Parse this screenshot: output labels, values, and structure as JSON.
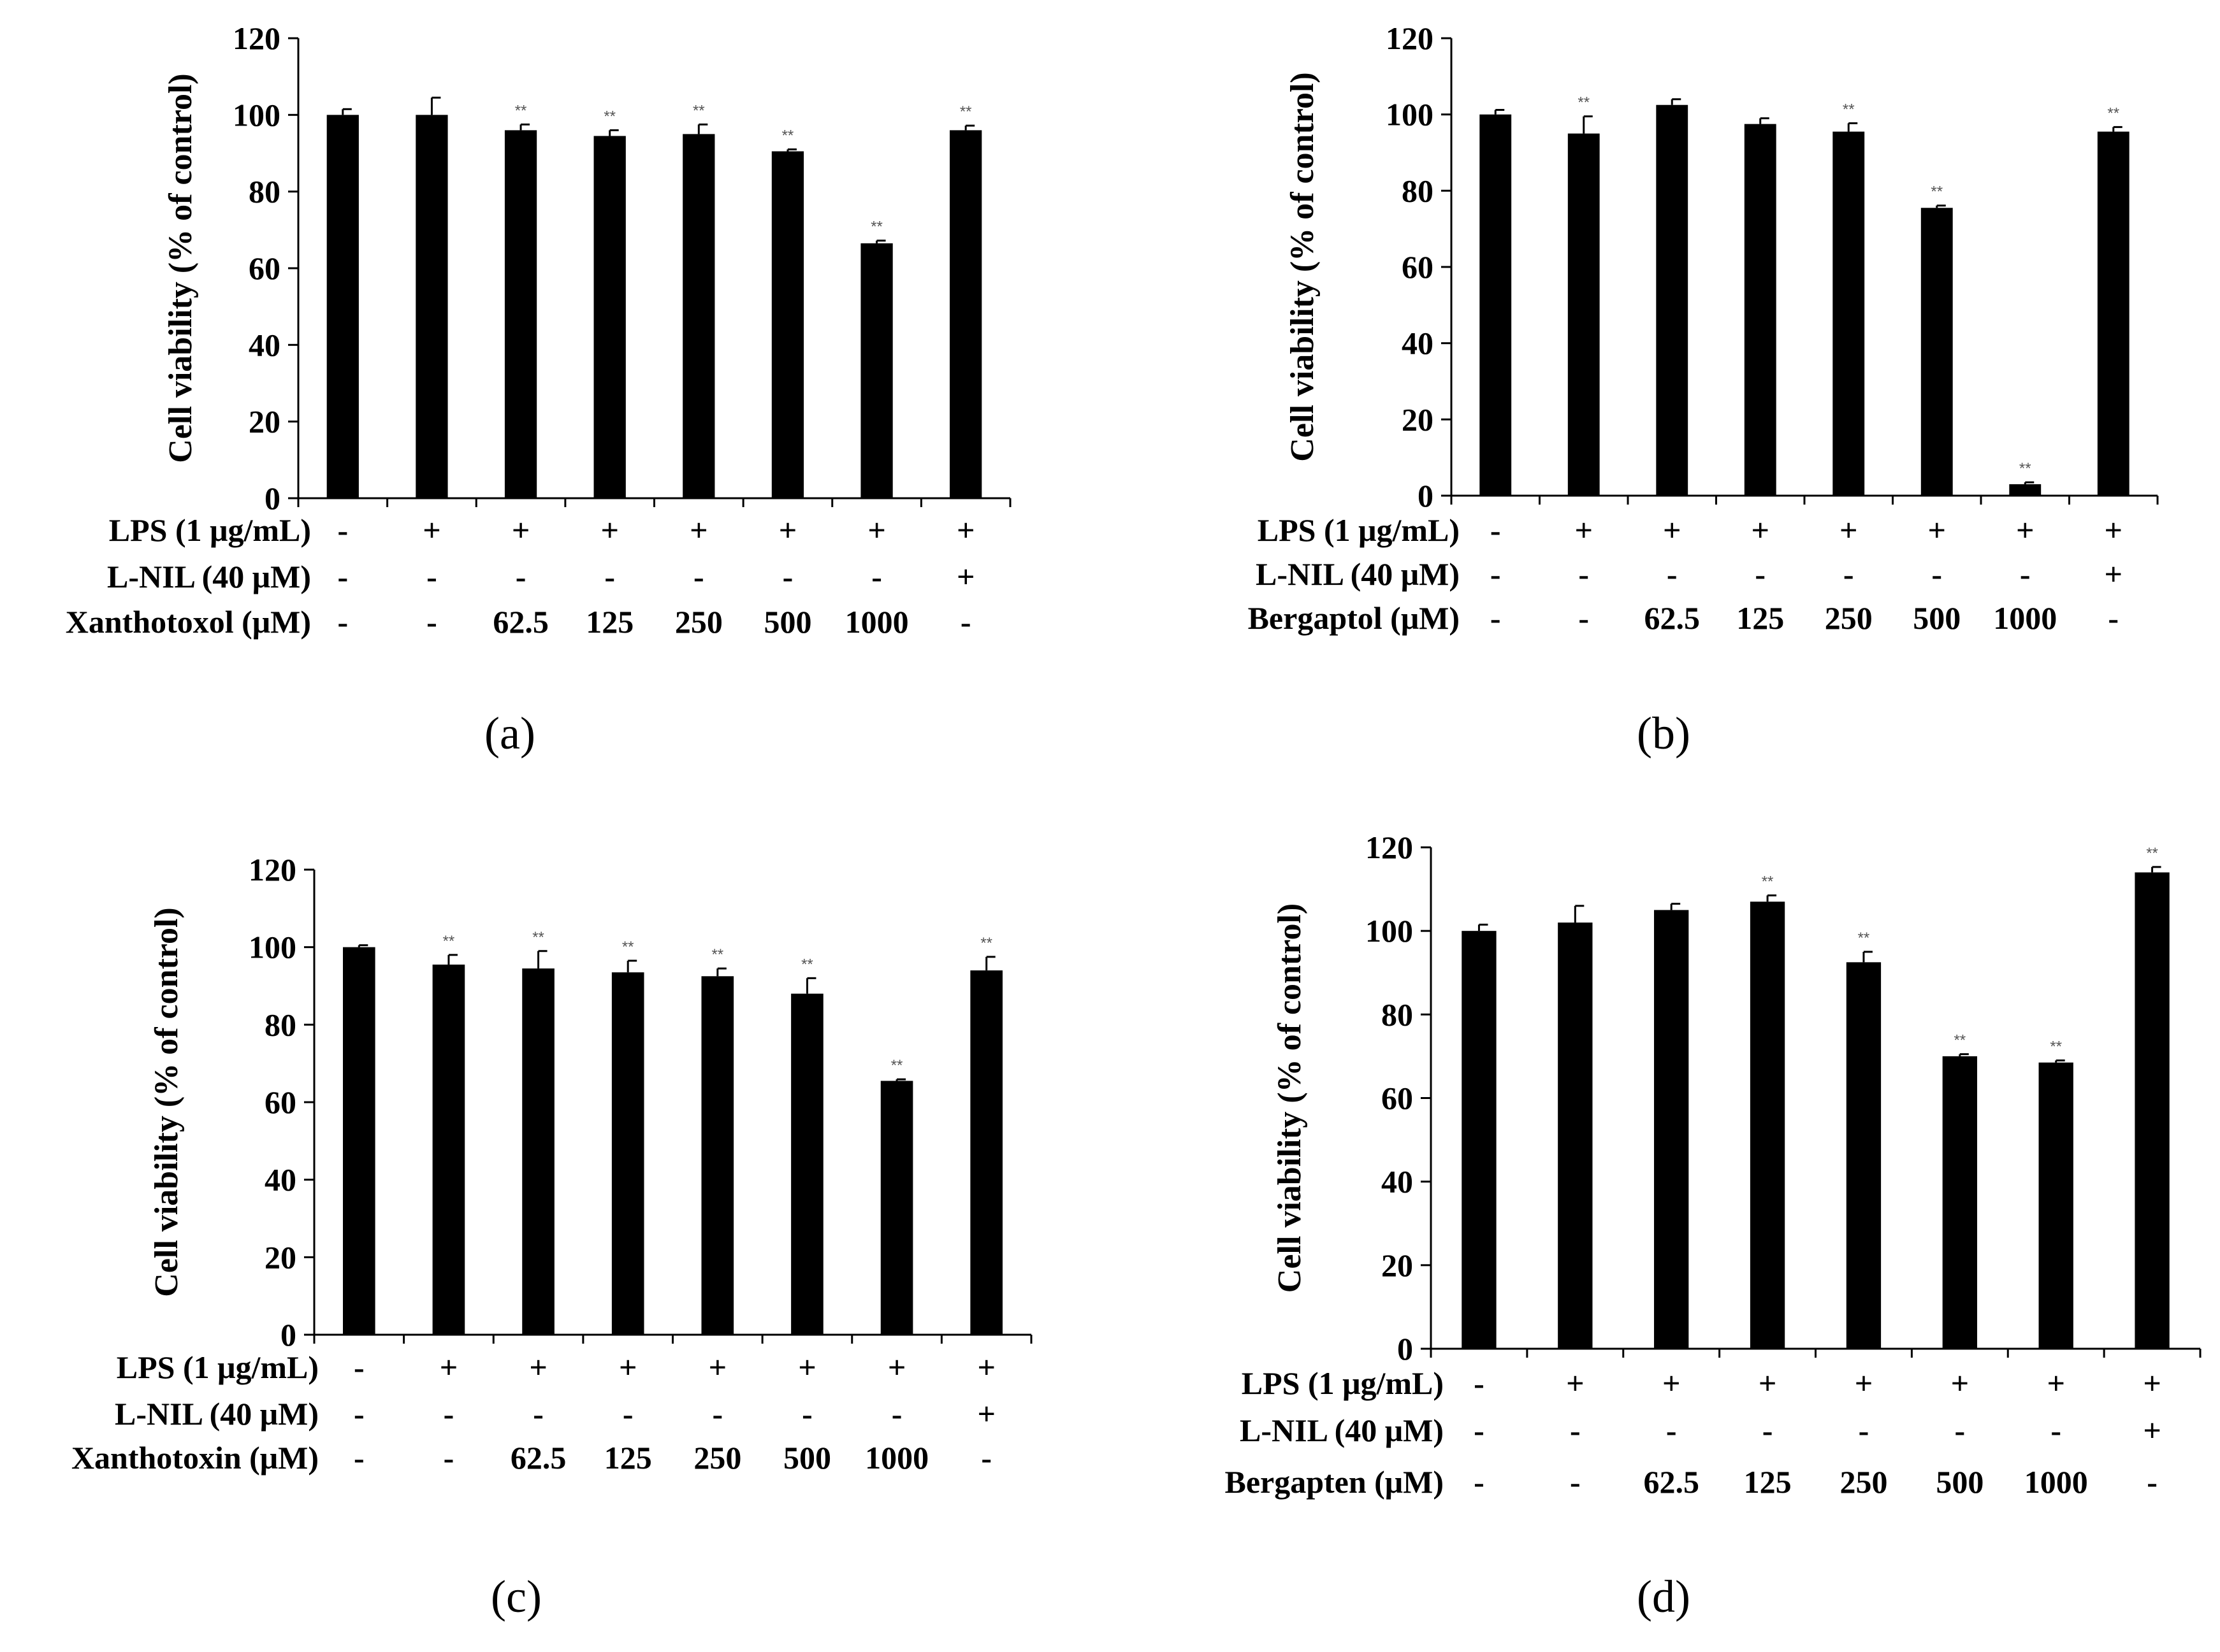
{
  "chart_data": [
    {
      "type": "bar",
      "panel_label": "(a)",
      "ylabel": "Cell viability (% of control)",
      "ylim": [
        0,
        120
      ],
      "yticks": [
        0,
        20,
        40,
        60,
        80,
        100,
        120
      ],
      "values": [
        100,
        100,
        96,
        94.5,
        95,
        90.5,
        66.5,
        96
      ],
      "errors": [
        1.5,
        4.5,
        1.5,
        1.5,
        2.5,
        0.5,
        0.7,
        1.2
      ],
      "significance": [
        "",
        "",
        "**",
        "**",
        "**",
        "**",
        "**",
        "**"
      ],
      "conditions": [
        {
          "label": "LPS (1 μg/mL)",
          "values": [
            "-",
            "+",
            "+",
            "+",
            "+",
            "+",
            "+",
            "+"
          ]
        },
        {
          "label": "L-NIL (40 μM)",
          "values": [
            "-",
            "-",
            "-",
            "-",
            "-",
            "-",
            "-",
            "+"
          ]
        },
        {
          "label": "Xanthotoxol (μM)",
          "values": [
            "-",
            "-",
            "62.5",
            "125",
            "250",
            "500",
            "1000",
            "-"
          ]
        }
      ]
    },
    {
      "type": "bar",
      "panel_label": "(b)",
      "ylabel": "Cell viability (% of control)",
      "ylim": [
        0,
        120
      ],
      "yticks": [
        0,
        20,
        40,
        60,
        80,
        100,
        120
      ],
      "values": [
        100,
        95,
        102.5,
        97.5,
        95.5,
        75.5,
        3,
        95.5
      ],
      "errors": [
        1.2,
        4.5,
        1.5,
        1.5,
        2.2,
        0.6,
        0.5,
        1.2
      ],
      "significance": [
        "",
        "**",
        "",
        "",
        "**",
        "**",
        "**",
        "**"
      ],
      "conditions": [
        {
          "label": "LPS (1 μg/mL)",
          "values": [
            "-",
            "+",
            "+",
            "+",
            "+",
            "+",
            "+",
            "+"
          ]
        },
        {
          "label": "L-NIL (40 μM)",
          "values": [
            "-",
            "-",
            "-",
            "-",
            "-",
            "-",
            "-",
            "+"
          ]
        },
        {
          "label": "Bergaptol (μM)",
          "values": [
            "-",
            "-",
            "62.5",
            "125",
            "250",
            "500",
            "1000",
            "-"
          ]
        }
      ]
    },
    {
      "type": "bar",
      "panel_label": "(c)",
      "ylabel": "Cell viability (% of control)",
      "ylim": [
        0,
        120
      ],
      "yticks": [
        0,
        20,
        40,
        60,
        80,
        100,
        120
      ],
      "values": [
        100,
        95.5,
        94.5,
        93.5,
        92.5,
        88,
        65.5,
        94
      ],
      "errors": [
        0.5,
        2.5,
        4.5,
        3,
        2,
        4,
        0.4,
        3.5
      ],
      "significance": [
        "",
        "**",
        "**",
        "**",
        "**",
        "**",
        "**",
        "**"
      ],
      "conditions": [
        {
          "label": "LPS (1 μg/mL)",
          "values": [
            "-",
            "+",
            "+",
            "+",
            "+",
            "+",
            "+",
            "+"
          ]
        },
        {
          "label": "L-NIL (40 μM)",
          "values": [
            "-",
            "-",
            "-",
            "-",
            "-",
            "-",
            "-",
            "+"
          ]
        },
        {
          "label": "Xanthotoxin (μM)",
          "values": [
            "-",
            "-",
            "62.5",
            "125",
            "250",
            "500",
            "1000",
            "-"
          ]
        }
      ]
    },
    {
      "type": "bar",
      "panel_label": "(d)",
      "ylabel": "Cell viability (% of control)",
      "ylim": [
        0,
        120
      ],
      "yticks": [
        0,
        20,
        40,
        60,
        80,
        100,
        120
      ],
      "values": [
        100,
        102,
        105,
        107,
        92.5,
        70,
        68.5,
        114
      ],
      "errors": [
        1.5,
        4,
        1.5,
        1.5,
        2.5,
        0.5,
        0.5,
        1.3
      ],
      "significance": [
        "",
        "",
        "",
        "**",
        "**",
        "**",
        "**",
        "**"
      ],
      "conditions": [
        {
          "label": "LPS (1 μg/mL)",
          "values": [
            "-",
            "+",
            "+",
            "+",
            "+",
            "+",
            "+",
            "+"
          ]
        },
        {
          "label": "L-NIL (40 μM)",
          "values": [
            "-",
            "-",
            "-",
            "-",
            "-",
            "-",
            "-",
            "+"
          ]
        },
        {
          "label": "Bergapten (μM)",
          "values": [
            "-",
            "-",
            "62.5",
            "125",
            "250",
            "500",
            "1000",
            "-"
          ]
        }
      ]
    }
  ]
}
